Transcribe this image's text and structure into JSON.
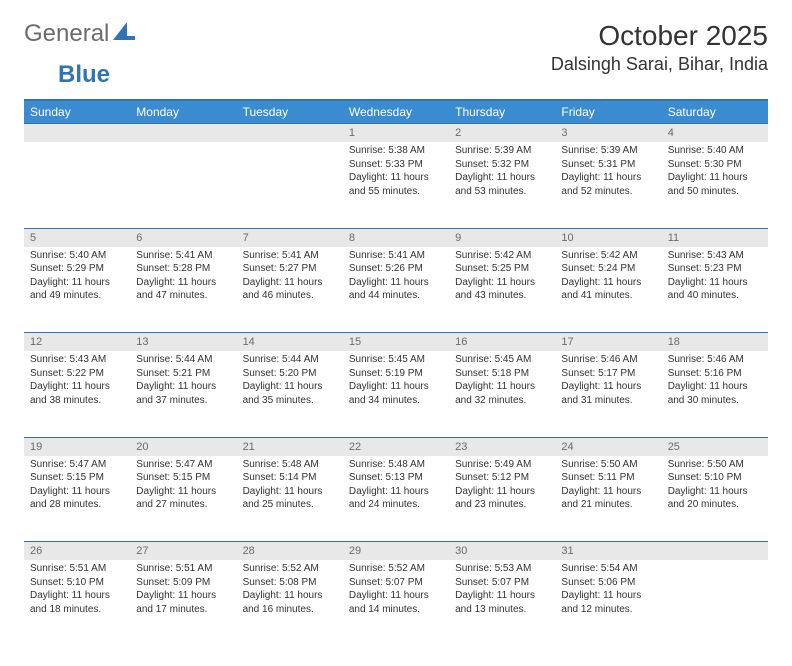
{
  "brand": {
    "name": "General",
    "sub": "Blue"
  },
  "title": "October 2025",
  "location": "Dalsingh Sarai, Bihar, India",
  "colors": {
    "header_bg": "#3b8bd0",
    "header_text": "#ffffff",
    "border": "#2f75b5",
    "daynum_bg": "#e8e8e8",
    "daynum_text": "#6b6b6b",
    "body_text": "#333333",
    "page_bg": "#ffffff",
    "logo_gray": "#6b6b6b",
    "logo_blue": "#2f75b5"
  },
  "dow": [
    "Sunday",
    "Monday",
    "Tuesday",
    "Wednesday",
    "Thursday",
    "Friday",
    "Saturday"
  ],
  "weeks": [
    [
      null,
      null,
      null,
      {
        "d": "1",
        "rise": "5:38 AM",
        "set": "5:33 PM",
        "dl": "11 hours and 55 minutes."
      },
      {
        "d": "2",
        "rise": "5:39 AM",
        "set": "5:32 PM",
        "dl": "11 hours and 53 minutes."
      },
      {
        "d": "3",
        "rise": "5:39 AM",
        "set": "5:31 PM",
        "dl": "11 hours and 52 minutes."
      },
      {
        "d": "4",
        "rise": "5:40 AM",
        "set": "5:30 PM",
        "dl": "11 hours and 50 minutes."
      }
    ],
    [
      {
        "d": "5",
        "rise": "5:40 AM",
        "set": "5:29 PM",
        "dl": "11 hours and 49 minutes."
      },
      {
        "d": "6",
        "rise": "5:41 AM",
        "set": "5:28 PM",
        "dl": "11 hours and 47 minutes."
      },
      {
        "d": "7",
        "rise": "5:41 AM",
        "set": "5:27 PM",
        "dl": "11 hours and 46 minutes."
      },
      {
        "d": "8",
        "rise": "5:41 AM",
        "set": "5:26 PM",
        "dl": "11 hours and 44 minutes."
      },
      {
        "d": "9",
        "rise": "5:42 AM",
        "set": "5:25 PM",
        "dl": "11 hours and 43 minutes."
      },
      {
        "d": "10",
        "rise": "5:42 AM",
        "set": "5:24 PM",
        "dl": "11 hours and 41 minutes."
      },
      {
        "d": "11",
        "rise": "5:43 AM",
        "set": "5:23 PM",
        "dl": "11 hours and 40 minutes."
      }
    ],
    [
      {
        "d": "12",
        "rise": "5:43 AM",
        "set": "5:22 PM",
        "dl": "11 hours and 38 minutes."
      },
      {
        "d": "13",
        "rise": "5:44 AM",
        "set": "5:21 PM",
        "dl": "11 hours and 37 minutes."
      },
      {
        "d": "14",
        "rise": "5:44 AM",
        "set": "5:20 PM",
        "dl": "11 hours and 35 minutes."
      },
      {
        "d": "15",
        "rise": "5:45 AM",
        "set": "5:19 PM",
        "dl": "11 hours and 34 minutes."
      },
      {
        "d": "16",
        "rise": "5:45 AM",
        "set": "5:18 PM",
        "dl": "11 hours and 32 minutes."
      },
      {
        "d": "17",
        "rise": "5:46 AM",
        "set": "5:17 PM",
        "dl": "11 hours and 31 minutes."
      },
      {
        "d": "18",
        "rise": "5:46 AM",
        "set": "5:16 PM",
        "dl": "11 hours and 30 minutes."
      }
    ],
    [
      {
        "d": "19",
        "rise": "5:47 AM",
        "set": "5:15 PM",
        "dl": "11 hours and 28 minutes."
      },
      {
        "d": "20",
        "rise": "5:47 AM",
        "set": "5:15 PM",
        "dl": "11 hours and 27 minutes."
      },
      {
        "d": "21",
        "rise": "5:48 AM",
        "set": "5:14 PM",
        "dl": "11 hours and 25 minutes."
      },
      {
        "d": "22",
        "rise": "5:48 AM",
        "set": "5:13 PM",
        "dl": "11 hours and 24 minutes."
      },
      {
        "d": "23",
        "rise": "5:49 AM",
        "set": "5:12 PM",
        "dl": "11 hours and 23 minutes."
      },
      {
        "d": "24",
        "rise": "5:50 AM",
        "set": "5:11 PM",
        "dl": "11 hours and 21 minutes."
      },
      {
        "d": "25",
        "rise": "5:50 AM",
        "set": "5:10 PM",
        "dl": "11 hours and 20 minutes."
      }
    ],
    [
      {
        "d": "26",
        "rise": "5:51 AM",
        "set": "5:10 PM",
        "dl": "11 hours and 18 minutes."
      },
      {
        "d": "27",
        "rise": "5:51 AM",
        "set": "5:09 PM",
        "dl": "11 hours and 17 minutes."
      },
      {
        "d": "28",
        "rise": "5:52 AM",
        "set": "5:08 PM",
        "dl": "11 hours and 16 minutes."
      },
      {
        "d": "29",
        "rise": "5:52 AM",
        "set": "5:07 PM",
        "dl": "11 hours and 14 minutes."
      },
      {
        "d": "30",
        "rise": "5:53 AM",
        "set": "5:07 PM",
        "dl": "11 hours and 13 minutes."
      },
      {
        "d": "31",
        "rise": "5:54 AM",
        "set": "5:06 PM",
        "dl": "11 hours and 12 minutes."
      },
      null
    ]
  ],
  "labels": {
    "sunrise": "Sunrise:",
    "sunset": "Sunset:",
    "daylight": "Daylight:"
  }
}
